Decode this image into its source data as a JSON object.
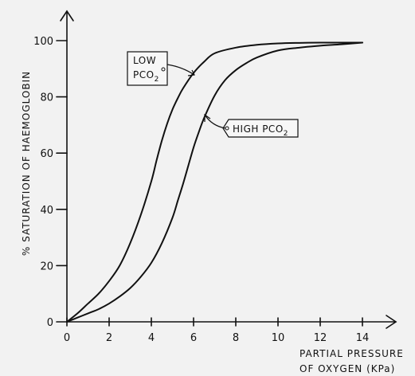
{
  "chart_data": {
    "type": "line",
    "title": "",
    "xlabel": [
      "PARTIAL  PRESSURE",
      "OF  OXYGEN  (KPa)"
    ],
    "ylabel": "% SATURATION  OF  HAEMOGLOBIN",
    "xlim": [
      0,
      14
    ],
    "ylim": [
      0,
      100
    ],
    "xticks": [
      0,
      2,
      4,
      6,
      8,
      10,
      12,
      14
    ],
    "yticks": [
      0,
      20,
      40,
      60,
      80,
      100
    ],
    "grid": false,
    "series": [
      {
        "name": "LOW PCO2",
        "label_lines": [
          "LOW",
          "PCO"
        ],
        "label_sub": "2",
        "x": [
          0,
          0.5,
          1,
          1.5,
          2,
          2.5,
          3,
          3.5,
          4,
          4.25,
          4.5,
          4.75,
          5,
          5.25,
          5.5,
          6,
          6.5,
          7,
          8,
          9,
          10,
          11,
          12,
          13,
          14
        ],
        "y": [
          0,
          3,
          6.5,
          10,
          14.5,
          20,
          28,
          38,
          50,
          57.5,
          64.5,
          70.5,
          75.5,
          79.5,
          83,
          88.5,
          92.5,
          95.5,
          97.5,
          98.5,
          99,
          99.2,
          99.3,
          99.3,
          99.3
        ]
      },
      {
        "name": "HIGH PCO2",
        "label_lines": [
          "HIGH  PCO"
        ],
        "label_sub": "2",
        "x": [
          0,
          0.5,
          1,
          1.5,
          2,
          2.5,
          3,
          3.5,
          4,
          4.5,
          5,
          5.25,
          5.5,
          5.75,
          6,
          6.25,
          6.5,
          7,
          7.5,
          8,
          8.5,
          9,
          10,
          11,
          12,
          13,
          14
        ],
        "y": [
          0,
          1.5,
          3,
          4.5,
          6.5,
          9,
          12,
          16,
          21,
          28,
          37,
          43,
          49,
          55.5,
          62,
          67.5,
          72.5,
          80.5,
          86,
          89.5,
          92,
          94,
          96.5,
          97.5,
          98.2,
          98.7,
          99.3
        ]
      }
    ]
  }
}
